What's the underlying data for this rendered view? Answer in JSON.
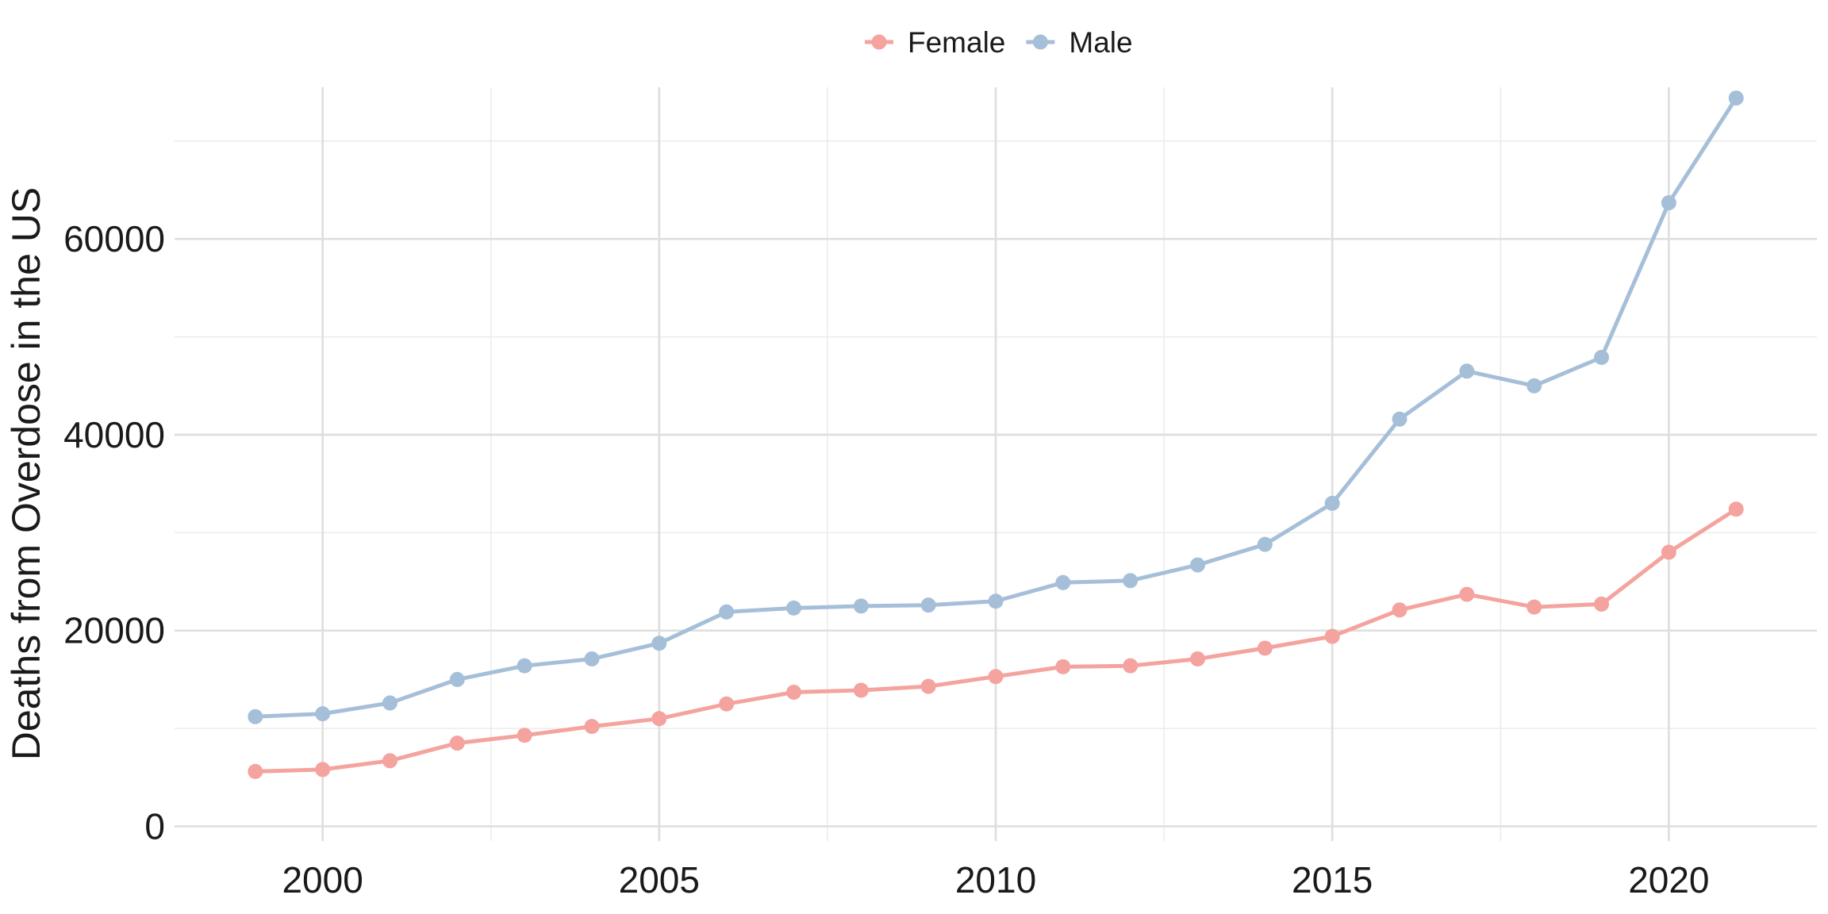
{
  "chart_data": {
    "type": "line",
    "title": "",
    "xlabel": "",
    "ylabel": "Deaths from Overdose in the US",
    "x": [
      1999,
      2000,
      2001,
      2002,
      2003,
      2004,
      2005,
      2006,
      2007,
      2008,
      2009,
      2010,
      2011,
      2012,
      2013,
      2014,
      2015,
      2016,
      2017,
      2018,
      2019,
      2020,
      2021
    ],
    "xlim": [
      1997.8,
      2022.2
    ],
    "ylim": [
      -1500,
      75500
    ],
    "x_ticks": [
      2000,
      2005,
      2010,
      2015,
      2020
    ],
    "y_ticks": [
      0,
      20000,
      40000,
      60000
    ],
    "grid": true,
    "legend_position": "top",
    "series": [
      {
        "name": "Female",
        "color": "#f4a39e",
        "values": [
          5600,
          5800,
          6700,
          8500,
          9300,
          10200,
          11000,
          12500,
          13700,
          13900,
          14300,
          15300,
          16300,
          16400,
          17100,
          18200,
          19400,
          22100,
          23700,
          22400,
          22700,
          28000,
          32400
        ]
      },
      {
        "name": "Male",
        "color": "#a6bfd9",
        "values": [
          11200,
          11500,
          12600,
          15000,
          16400,
          17100,
          18700,
          21900,
          22300,
          22500,
          22600,
          23000,
          24900,
          25100,
          26700,
          28800,
          33000,
          41600,
          46500,
          45000,
          47900,
          63700,
          74400
        ]
      }
    ]
  }
}
